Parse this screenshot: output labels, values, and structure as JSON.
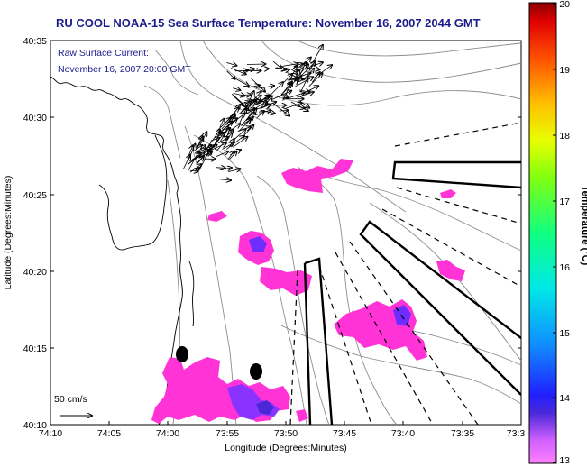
{
  "title": "RU COOL  NOAA-15  Sea Surface Temperature:  November 16, 2007 2044 GMT",
  "annotation": {
    "line1": "Raw Surface Current:",
    "line2": "November 16, 2007 20:00 GMT"
  },
  "scale_label": "50 cm/s",
  "axes": {
    "xlabel": "Longitude (Degrees:Minutes)",
    "ylabel": "Latitude (Degrees:Minutes)",
    "x_ticks": [
      "74:10",
      "74:05",
      "74:00",
      "73:55",
      "73:50",
      "73:45",
      "73:40",
      "73:35",
      "73:3"
    ],
    "y_ticks": [
      "40:35",
      "40:30",
      "40:25",
      "40:20",
      "40:15",
      "40:10"
    ]
  },
  "colorbar": {
    "label": "Temperature (°C)",
    "ticks": [
      "20",
      "19",
      "18",
      "17",
      "16",
      "15",
      "14",
      "13"
    ],
    "range": [
      13,
      20
    ]
  },
  "colors": {
    "title_text": "#1c1c8c",
    "sst_patch": "#ff33d6",
    "sst_patch_cool": "#8a33ff",
    "sst_patch_coldest": "#4a28d8",
    "bathymetry": "#8c8c8c"
  }
}
